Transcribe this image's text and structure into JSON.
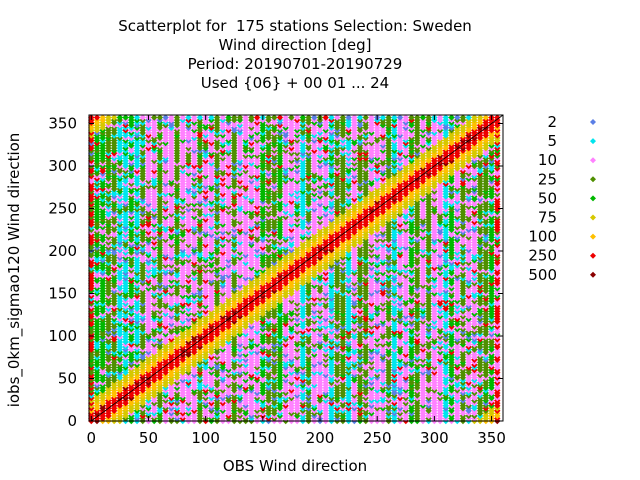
{
  "chart_data": {
    "type": "scatter",
    "title_lines": [
      "Scatterplot for  175 stations Selection: Sweden",
      "Wind direction [deg]",
      "Period: 20190701-20190729",
      "Used {06} + 00 01 ... 24"
    ],
    "xlabel": "OBS Wind direction",
    "ylabel": "iobs_0km_sigmao120 Wind direction",
    "xlim": [
      -2,
      360
    ],
    "ylim": [
      0,
      360
    ],
    "xticks": [
      0,
      50,
      100,
      150,
      200,
      250,
      300,
      350
    ],
    "yticks": [
      0,
      50,
      100,
      150,
      200,
      250,
      300,
      350
    ],
    "grid": false,
    "legend_position": "right",
    "diagonal_reference_line": true,
    "legend": [
      {
        "label": "2",
        "color": "#5a7fe6"
      },
      {
        "label": "5",
        "color": "#00e5ee"
      },
      {
        "label": "10",
        "color": "#ff82ff"
      },
      {
        "label": "25",
        "color": "#4f8f00"
      },
      {
        "label": "50",
        "color": "#00b800"
      },
      {
        "label": "75",
        "color": "#d6c800"
      },
      {
        "label": "100",
        "color": "#ffc000"
      },
      {
        "label": "250",
        "color": "#ee0000"
      },
      {
        "label": "500",
        "color": "#8b0000"
      }
    ],
    "x_columns": [
      0,
      5,
      10,
      15,
      20,
      25,
      30,
      35,
      40,
      45,
      50,
      55,
      60,
      65,
      70,
      75,
      80,
      85,
      90,
      95,
      100,
      105,
      110,
      115,
      120,
      125,
      130,
      135,
      140,
      145,
      150,
      155,
      160,
      165,
      170,
      175,
      180,
      185,
      190,
      195,
      200,
      205,
      210,
      215,
      220,
      225,
      230,
      235,
      240,
      245,
      250,
      255,
      260,
      265,
      270,
      275,
      280,
      285,
      290,
      295,
      300,
      305,
      310,
      315,
      320,
      325,
      330,
      335,
      340,
      345,
      350,
      355
    ],
    "series_note": "Points lie on a 5-degree column grid; density categories follow the legend bins, highest counts concentrated along the y = x diagonal."
  }
}
